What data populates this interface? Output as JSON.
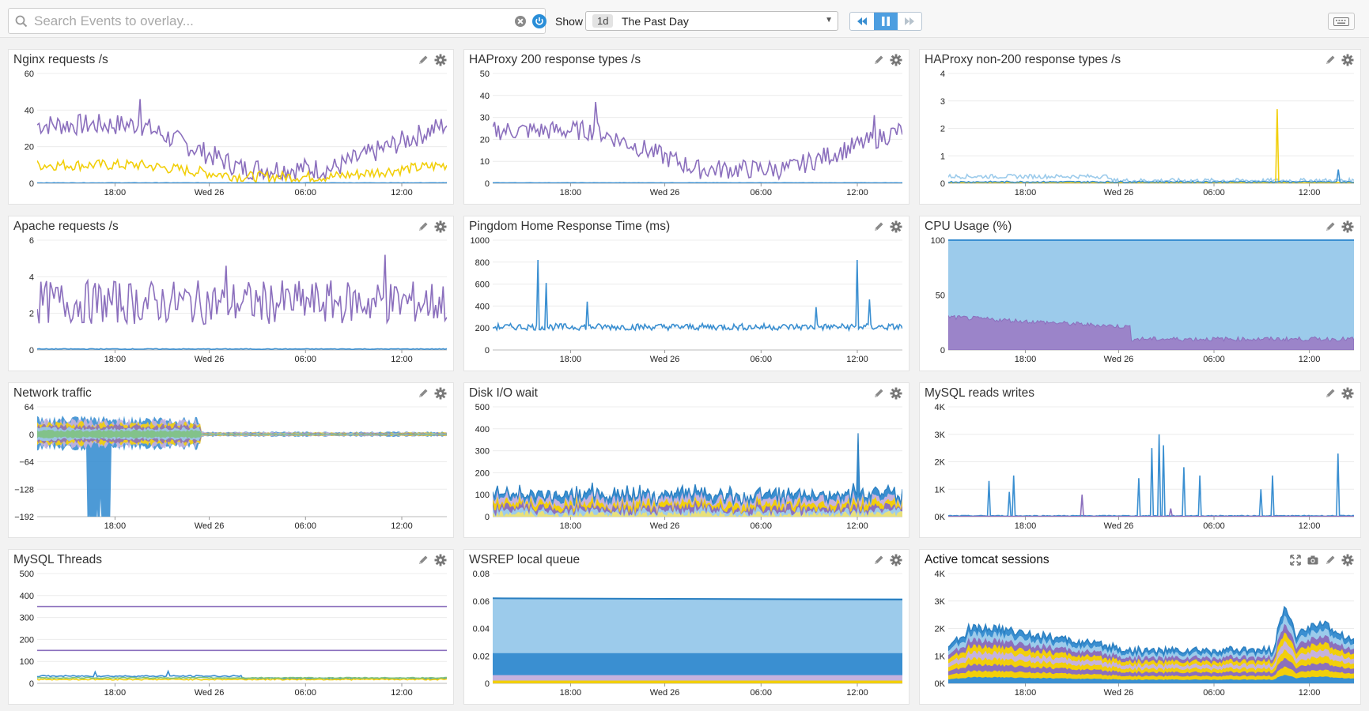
{
  "toolbar": {
    "search_placeholder": "Search Events to overlay...",
    "show_label": "Show",
    "time_badge": "1d",
    "time_value": "The Past Day"
  },
  "colors": {
    "purple": "#8b6fbd",
    "yellow": "#f2cf0a",
    "blue": "#3a8fd1",
    "light_blue": "#9ccbeb",
    "lavender": "#c5b2de"
  },
  "x_ticks": [
    "18:00",
    "Wed 26",
    "06:00",
    "12:00"
  ],
  "widgets": [
    {
      "title": "Nginx requests /s",
      "y_ticks": [
        "60",
        "40",
        "20",
        "0"
      ]
    },
    {
      "title": "HAProxy 200 response types /s",
      "y_ticks": [
        "50",
        "40",
        "30",
        "20",
        "10",
        "0"
      ]
    },
    {
      "title": "HAProxy non-200 response types /s",
      "y_ticks": [
        "4",
        "3",
        "2",
        "1",
        "0"
      ]
    },
    {
      "title": "Apache requests /s",
      "y_ticks": [
        "6",
        "4",
        "2",
        "0"
      ]
    },
    {
      "title": "Pingdom Home Response Time (ms)",
      "y_ticks": [
        "1000",
        "800",
        "600",
        "400",
        "200",
        "0"
      ]
    },
    {
      "title": "CPU Usage (%)",
      "y_ticks": [
        "100",
        "50",
        "0"
      ]
    },
    {
      "title": "Network traffic",
      "y_ticks": [
        "64",
        "0",
        "−64",
        "−128",
        "−192"
      ]
    },
    {
      "title": "Disk I/O wait",
      "y_ticks": [
        "500",
        "400",
        "300",
        "200",
        "100",
        "0"
      ]
    },
    {
      "title": "MySQL reads writes",
      "y_ticks": [
        "4K",
        "3K",
        "2K",
        "1K",
        "0K"
      ]
    },
    {
      "title": "MySQL Threads",
      "y_ticks": [
        "500",
        "400",
        "300",
        "200",
        "100",
        "0"
      ]
    },
    {
      "title": "WSREP local queue",
      "y_ticks": [
        "0.08",
        "0.06",
        "0.04",
        "0.02",
        "0"
      ]
    },
    {
      "title": "Active tomcat sessions",
      "y_ticks": [
        "4K",
        "3K",
        "2K",
        "1K",
        "0K"
      ]
    }
  ]
}
